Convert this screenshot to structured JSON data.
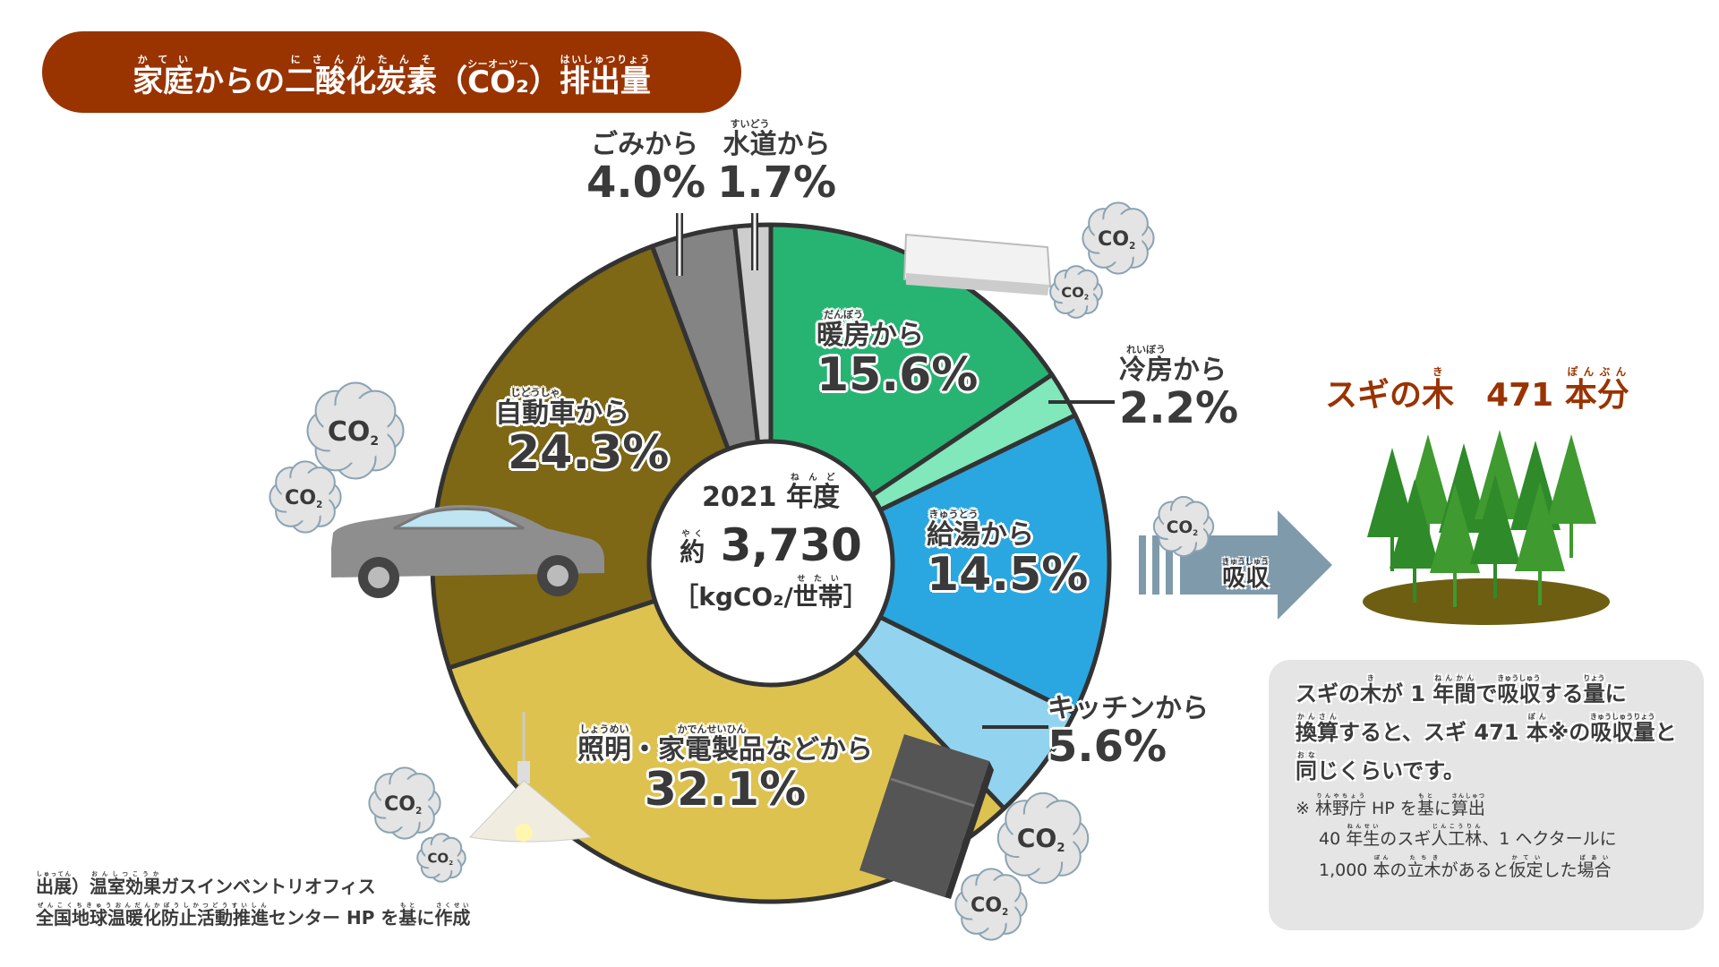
{
  "title": [
    [
      "家庭",
      "かてい"
    ],
    [
      "からの",
      ""
    ],
    [
      "二酸化炭素",
      "にさんかたんそ"
    ],
    [
      "（",
      ""
    ],
    [
      "CO₂",
      "シーオーツー"
    ],
    [
      "）",
      ""
    ],
    [
      "排出量",
      "はいしゅつりょう"
    ]
  ],
  "chart_data": {
    "type": "pie",
    "title": "家庭からの二酸化炭素（CO₂）排出量",
    "center": {
      "year": "2021",
      "year_label": [
        [
          "年度",
          "ねんど"
        ]
      ],
      "approx": [
        [
          "約",
          "やく"
        ]
      ],
      "value": "3,730",
      "unit_pre": "［kgCO₂/",
      "unit_household": [
        [
          "世帯",
          "せたい"
        ]
      ],
      "unit_post": "］"
    },
    "slices": [
      {
        "name": [
          [
            "暖房",
            "だんぼう"
          ],
          [
            "から",
            ""
          ]
        ],
        "label": "暖房から",
        "value": 15.6,
        "pct": "15.6%",
        "color": "#27b473"
      },
      {
        "name": [
          [
            "冷房",
            "れいぼう"
          ],
          [
            "から",
            ""
          ]
        ],
        "label": "冷房から",
        "value": 2.2,
        "pct": "2.2%",
        "color": "#80e8bb"
      },
      {
        "name": [
          [
            "給湯",
            "きゅうとう"
          ],
          [
            "から",
            ""
          ]
        ],
        "label": "給湯から",
        "value": 14.5,
        "pct": "14.5%",
        "color": "#2aa7e0"
      },
      {
        "name": [
          [
            "キッチンから",
            ""
          ]
        ],
        "label": "キッチンから",
        "value": 5.6,
        "pct": "5.6%",
        "color": "#92d4ef"
      },
      {
        "name": [
          [
            "照明",
            "しょうめい"
          ],
          [
            "・",
            ""
          ],
          [
            "家電製品",
            "かでんせいひん"
          ],
          [
            "などから",
            ""
          ]
        ],
        "label": "照明・家電製品などから",
        "value": 32.1,
        "pct": "32.1%",
        "color": "#ddc24f"
      },
      {
        "name": [
          [
            "自動車",
            "じどうしゃ"
          ],
          [
            "から",
            ""
          ]
        ],
        "label": "自動車から",
        "value": 24.3,
        "pct": "24.3%",
        "color": "#7e6715"
      },
      {
        "name": [
          [
            "ごみから",
            ""
          ]
        ],
        "label": "ごみから",
        "value": 4.0,
        "pct": "4.0%",
        "color": "#848484"
      },
      {
        "name": [
          [
            "水道",
            "すいどう"
          ],
          [
            "から",
            ""
          ]
        ],
        "label": "水道から",
        "value": 1.7,
        "pct": "1.7%",
        "color": "#cdcdcd"
      }
    ]
  },
  "co2_label": "CO",
  "co2_sub": "2",
  "absorb": [
    [
      "吸収",
      "きゅうしゅう"
    ]
  ],
  "sugi": [
    [
      "スギの",
      ""
    ],
    [
      "木",
      "き"
    ],
    [
      "　471 ",
      ""
    ],
    [
      "本分",
      "ぽんぶん"
    ]
  ],
  "note": {
    "line1": [
      [
        "スギの",
        ""
      ],
      [
        "木",
        "き"
      ],
      [
        "が 1 ",
        ""
      ],
      [
        "年間",
        "ねんかん"
      ],
      [
        "で",
        ""
      ],
      [
        "吸収",
        "きゅうしゅう"
      ],
      [
        "する",
        ""
      ],
      [
        "量",
        "りょう"
      ],
      [
        "に",
        ""
      ]
    ],
    "line2": [
      [
        "換算",
        "かんさん"
      ],
      [
        "すると、スギ 471 ",
        ""
      ],
      [
        "本",
        "ぽん"
      ],
      [
        "※の",
        ""
      ],
      [
        "吸収量",
        "きゅうしゅうりょう"
      ],
      [
        "と",
        ""
      ]
    ],
    "line3": [
      [
        "同",
        "おな"
      ],
      [
        "じくらいです。",
        ""
      ]
    ],
    "foot1": [
      [
        "※ ",
        ""
      ],
      [
        "林野庁",
        "りんやちょう"
      ],
      [
        " HP を",
        ""
      ],
      [
        "基",
        "もと"
      ],
      [
        "に",
        ""
      ],
      [
        "算出",
        "さんしゅつ"
      ]
    ],
    "foot2": [
      [
        "40 ",
        ""
      ],
      [
        "年生",
        "ねんせい"
      ],
      [
        "のスギ",
        ""
      ],
      [
        "人工林",
        "じんこうりん"
      ],
      [
        "、1 ヘクタールに",
        ""
      ]
    ],
    "foot3": [
      [
        "1,000 ",
        ""
      ],
      [
        "本",
        "ぼん"
      ],
      [
        "の",
        ""
      ],
      [
        "立木",
        "たちき"
      ],
      [
        "があると",
        ""
      ],
      [
        "仮定",
        "かてい"
      ],
      [
        "した",
        ""
      ],
      [
        "場合",
        "ばあい"
      ]
    ]
  },
  "source": {
    "line1": [
      [
        "出展",
        "しゅってん"
      ],
      [
        "）",
        ""
      ],
      [
        "温室効果",
        "おんしつこうか"
      ],
      [
        "ガスインベントリオフィス",
        ""
      ]
    ],
    "line2": [
      [
        "全国地球温暖化防止活動推進",
        "ぜんこくちきゅうおんだんかぼうしかつどうすいしん"
      ],
      [
        "センター HP を",
        ""
      ],
      [
        "基",
        "もと"
      ],
      [
        "に",
        ""
      ],
      [
        "作成",
        "さくせい"
      ]
    ]
  }
}
